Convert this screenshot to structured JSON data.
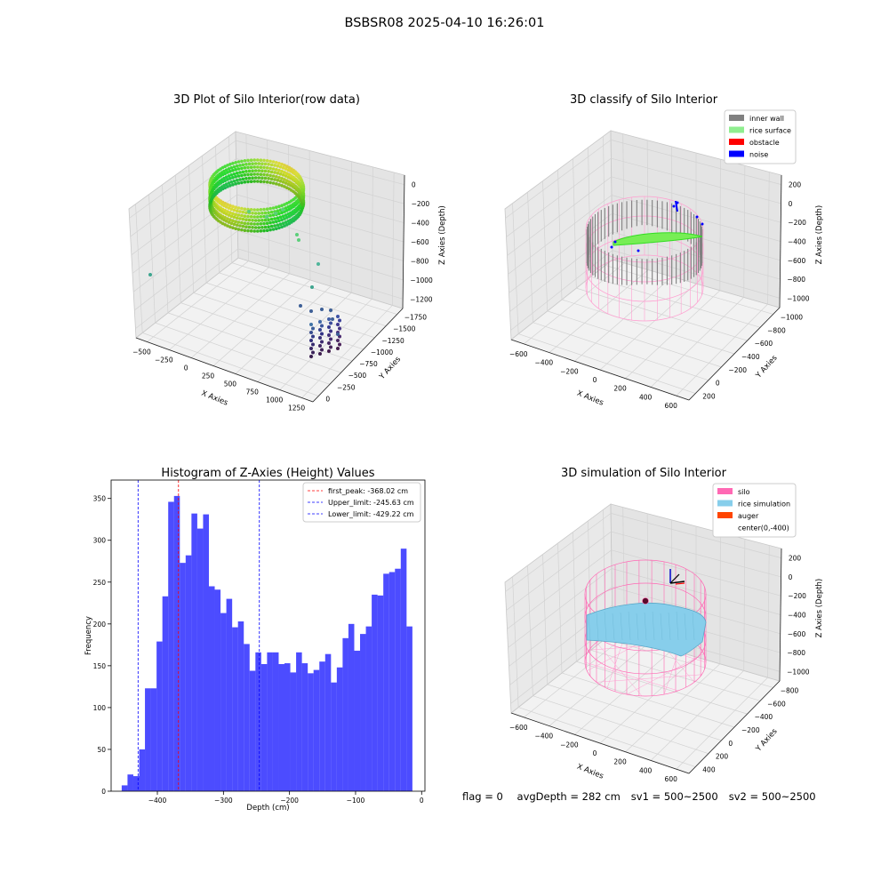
{
  "figure": {
    "suptitle": "BSBSR08 2025-04-10 16:26:01",
    "status": {
      "flag": "flag = 0",
      "avg_depth": "avgDepth = 282 cm",
      "sv1": "sv1 = 500~2500",
      "sv2": "sv2 = 500~2500"
    }
  },
  "panels": {
    "raw": {
      "title": "3D Plot of Silo Interior(row data)",
      "xlabel": "X Axies",
      "ylabel": "Y Axies",
      "zlabel": "Z Axies (Depth)",
      "xticks": [
        "−500",
        "−250",
        "0",
        "250",
        "500",
        "750",
        "1000",
        "1250"
      ],
      "yticks": [
        "0",
        "−250",
        "−500",
        "−750",
        "−1000",
        "−1250",
        "−1500",
        "−1750"
      ],
      "zticks": [
        "0",
        "−200",
        "−400",
        "−600",
        "−800",
        "−1000",
        "−1200"
      ]
    },
    "classify": {
      "title": "3D classify of Silo Interior",
      "xlabel": "X Axies",
      "ylabel": "Y Axies",
      "zlabel": "Z Axies (Depth)",
      "xticks": [
        "−600",
        "−400",
        "−200",
        "0",
        "200",
        "400",
        "600"
      ],
      "yticks": [
        "200",
        "0",
        "−200",
        "−400",
        "−600",
        "−800",
        "−1000"
      ],
      "zticks": [
        "200",
        "0",
        "−200",
        "−400",
        "−600",
        "−800",
        "−1000"
      ],
      "legend": [
        {
          "label": "inner wall",
          "color": "#808080"
        },
        {
          "label": "rice surface",
          "color": "#90ee90"
        },
        {
          "label": "obstacle",
          "color": "#ff0000"
        },
        {
          "label": "noise",
          "color": "#0000ff"
        }
      ]
    },
    "simulation": {
      "title": "3D simulation of Silo Interior",
      "xlabel": "X Axies",
      "ylabel": "Y Axies",
      "zlabel": "Z Axies (Depth)",
      "xticks": [
        "−600",
        "−400",
        "−200",
        "0",
        "200",
        "400",
        "600"
      ],
      "yticks": [
        "400",
        "200",
        "0",
        "−200",
        "−400",
        "−600",
        "−800"
      ],
      "zticks": [
        "200",
        "0",
        "−200",
        "−400",
        "−600",
        "−800",
        "−1000"
      ],
      "legend": [
        {
          "label": "silo",
          "color": "#ff69b4"
        },
        {
          "label": "rice simulation",
          "color": "#87ceeb"
        },
        {
          "label": "auger",
          "color": "#ff4500"
        },
        {
          "label": "center(0,-400)",
          "color": ""
        }
      ]
    }
  },
  "chart_data": {
    "type": "bar",
    "title": "Histogram of Z-Axies (Height) Values",
    "xlabel": "Depth (cm)",
    "ylabel": "Frequency",
    "xlim": [
      -470,
      5
    ],
    "ylim": [
      0,
      372
    ],
    "xticks": [
      -400,
      -300,
      -200,
      -100,
      0
    ],
    "yticks": [
      0,
      50,
      100,
      150,
      200,
      250,
      300,
      350
    ],
    "bin_start": -454,
    "bin_width": 8.8,
    "values": [
      7,
      20,
      18,
      50,
      123,
      123,
      179,
      233,
      346,
      353,
      273,
      282,
      332,
      314,
      331,
      245,
      241,
      213,
      230,
      196,
      203,
      176,
      144,
      166,
      152,
      166,
      166,
      152,
      153,
      142,
      166,
      153,
      141,
      145,
      155,
      164,
      130,
      148,
      183,
      200,
      168,
      188,
      197,
      235,
      234,
      260,
      262,
      266,
      290,
      197
    ],
    "bar_color": "#0000ff",
    "vlines": [
      {
        "label": "first_peak: -368.02 cm",
        "x": -368.02,
        "color": "#ff0000"
      },
      {
        "label": "Upper_limit: -245.63 cm",
        "x": -245.63,
        "color": "#0000ff"
      },
      {
        "label": "Lower_limit: -429.22 cm",
        "x": -429.22,
        "color": "#0000ff"
      }
    ],
    "grid": false,
    "legend_position": "top-right"
  }
}
